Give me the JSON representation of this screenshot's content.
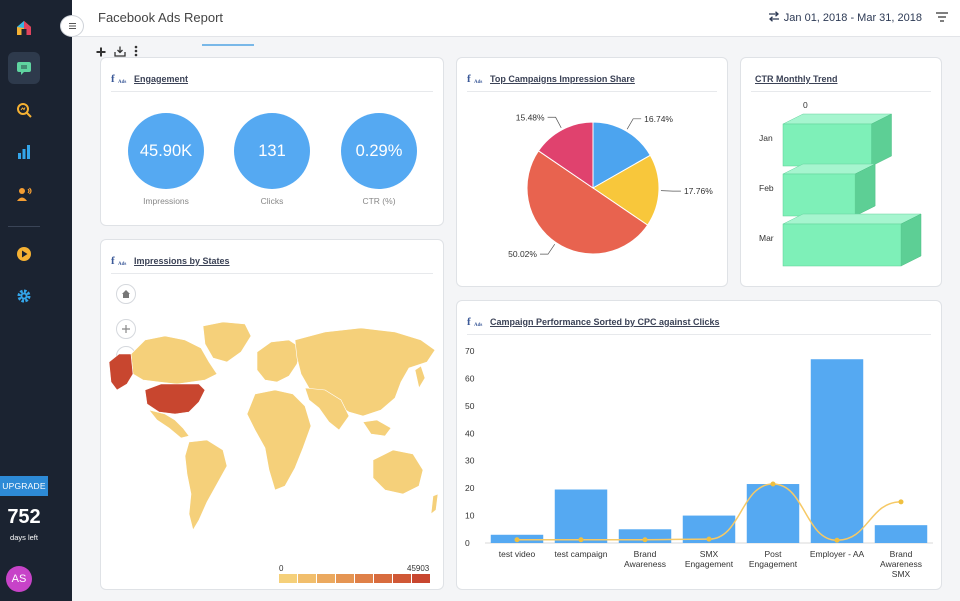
{
  "app": {
    "report_title": "Facebook Ads Report",
    "date_range": "Jan 01, 2018 - Mar 31, 2018"
  },
  "sidebar": {
    "icons": [
      "home-icon",
      "chat-icon",
      "search-analytics-icon",
      "bar-chart-icon",
      "users-voice-icon",
      "play-icon",
      "gear-icon"
    ],
    "upgrade_label": "UPGRADE",
    "days_count": "752",
    "days_label": "days left",
    "avatar_initials": "AS"
  },
  "engagement": {
    "title": "Engagement",
    "logo_text": "f",
    "logo_sub": "Ads",
    "metrics": [
      {
        "value": "45.90K",
        "label": "Impressions"
      },
      {
        "value": "131",
        "label": "Clicks"
      },
      {
        "value": "0.29%",
        "label": "CTR (%)"
      }
    ]
  },
  "map_card": {
    "title": "Impressions by States",
    "legend_min": "0",
    "legend_max": "45903",
    "legend_colors": [
      "#f5d07a",
      "#f1be6c",
      "#eba95f",
      "#e59553",
      "#df8048",
      "#d86c3e",
      "#d05836",
      "#c8462f"
    ]
  },
  "pie_card": {
    "title": "Top Campaigns Impression Share"
  },
  "ctr_card": {
    "title": "CTR Monthly Trend"
  },
  "bar_card": {
    "title": "Campaign Performance Sorted by CPC against Clicks"
  },
  "chart_data": [
    {
      "type": "pie",
      "title": "Top Campaigns Impression Share",
      "slices": [
        {
          "label": "16.74%",
          "value": 16.74,
          "color": "#4ca4ef"
        },
        {
          "label": "17.76%",
          "value": 17.76,
          "color": "#f8c73b"
        },
        {
          "label": "50.02%",
          "value": 50.02,
          "color": "#e8634f"
        },
        {
          "label": "15.48%",
          "value": 15.48,
          "color": "#e0426e"
        }
      ]
    },
    {
      "type": "bar",
      "title": "CTR Monthly Trend",
      "orientation": "horizontal",
      "categories": [
        "Jan",
        "Feb",
        "Mar"
      ],
      "values": [
        0.27,
        0.22,
        0.36
      ],
      "axis_label": "0",
      "color": "#7ef0b8"
    },
    {
      "type": "bar",
      "title": "Campaign Performance Sorted by CPC against Clicks",
      "categories": [
        "test video",
        "test campaign",
        "Brand Awareness",
        "SMX Engagement",
        "Post Engagement",
        "Employer - AA",
        "Brand Awareness SMX"
      ],
      "yticks": [
        "0",
        "10",
        "20",
        "30",
        "40",
        "50",
        "60",
        "70"
      ],
      "ylim": [
        0,
        70
      ],
      "series": [
        {
          "type": "bar",
          "values": [
            3,
            19.5,
            5,
            10,
            21.5,
            67,
            6.5
          ],
          "color": "#55a9f2"
        },
        {
          "type": "line",
          "values": [
            1.2,
            1.2,
            1.2,
            1.4,
            21.5,
            1,
            15
          ],
          "color": "#f6c966"
        }
      ]
    }
  ]
}
